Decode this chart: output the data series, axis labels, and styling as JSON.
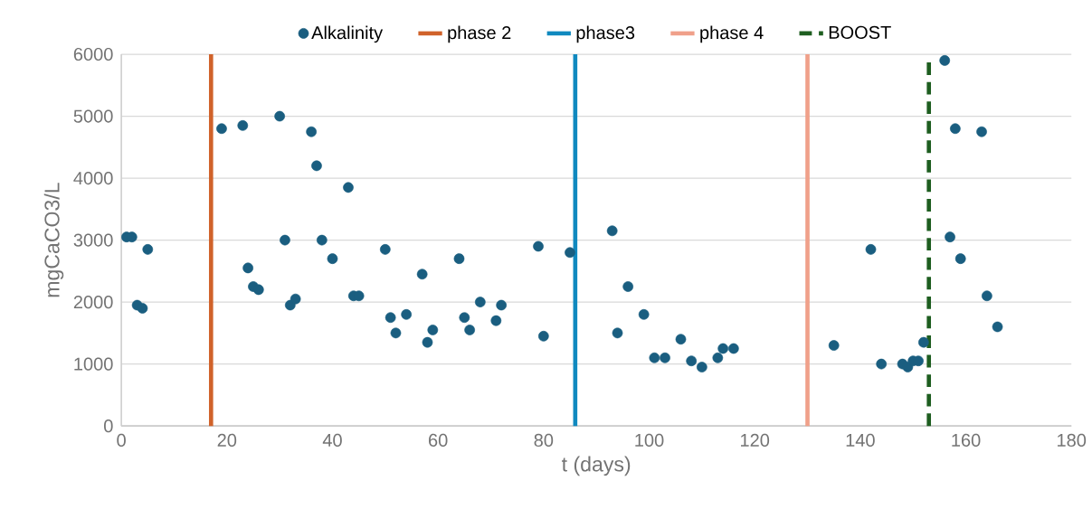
{
  "chart_data": {
    "type": "scatter",
    "xlabel": "t (days)",
    "ylabel": "mgCaCO3/L",
    "xlim": [
      0,
      180
    ],
    "xticks": [
      0,
      20,
      40,
      60,
      80,
      100,
      120,
      140,
      160,
      180
    ],
    "ylim": [
      0,
      6000
    ],
    "yticks": [
      0,
      1000,
      2000,
      3000,
      4000,
      5000,
      6000
    ],
    "grid": "y",
    "legend": "top",
    "series": [
      {
        "name": "Alkalinity",
        "marker": "circle",
        "color": "#1a5e80",
        "x": [
          1,
          2,
          3,
          4,
          5,
          19,
          23,
          24,
          25,
          26,
          30,
          31,
          32,
          33,
          36,
          37,
          38,
          40,
          43,
          44,
          45,
          50,
          51,
          52,
          54,
          57,
          58,
          59,
          64,
          65,
          66,
          68,
          71,
          72,
          79,
          80,
          85,
          93,
          94,
          96,
          99,
          101,
          103,
          106,
          108,
          110,
          113,
          114,
          116,
          135,
          142,
          144,
          148,
          149,
          150,
          151,
          152,
          156,
          157,
          158,
          159,
          163,
          164,
          166
        ],
        "values": [
          3050,
          3050,
          1950,
          1900,
          2850,
          4800,
          4850,
          2550,
          2250,
          2200,
          5000,
          3000,
          1950,
          2050,
          4750,
          4200,
          3000,
          2700,
          3850,
          2100,
          2100,
          2850,
          1750,
          1500,
          1800,
          2450,
          1350,
          1550,
          2700,
          1750,
          1550,
          2000,
          1700,
          1950,
          2900,
          1450,
          2800,
          3150,
          1500,
          2250,
          1800,
          1100,
          1100,
          1400,
          1050,
          950,
          1100,
          1250,
          1250,
          1300,
          2850,
          1000,
          1000,
          950,
          1050,
          1050,
          1350,
          5900,
          3050,
          4800,
          2700,
          4750,
          2100,
          1600
        ]
      },
      {
        "name": "phase 2",
        "type": "line",
        "marker": "none",
        "line_style": "solid",
        "color": "#d0622a",
        "x": [
          17,
          17
        ],
        "values": [
          0,
          6000
        ]
      },
      {
        "name": "phase3",
        "type": "line",
        "marker": "none",
        "line_style": "solid",
        "color": "#1089bf",
        "x": [
          86,
          86
        ],
        "values": [
          0,
          6000
        ]
      },
      {
        "name": "phase 4",
        "type": "line",
        "marker": "none",
        "line_style": "solid",
        "color": "#f0a08a",
        "x": [
          130,
          130
        ],
        "values": [
          0,
          6000
        ]
      },
      {
        "name": "BOOST",
        "type": "line",
        "marker": "none",
        "line_style": "dashed",
        "color": "#1e5e20",
        "x": [
          153,
          153
        ],
        "values": [
          0,
          5900
        ]
      }
    ]
  }
}
